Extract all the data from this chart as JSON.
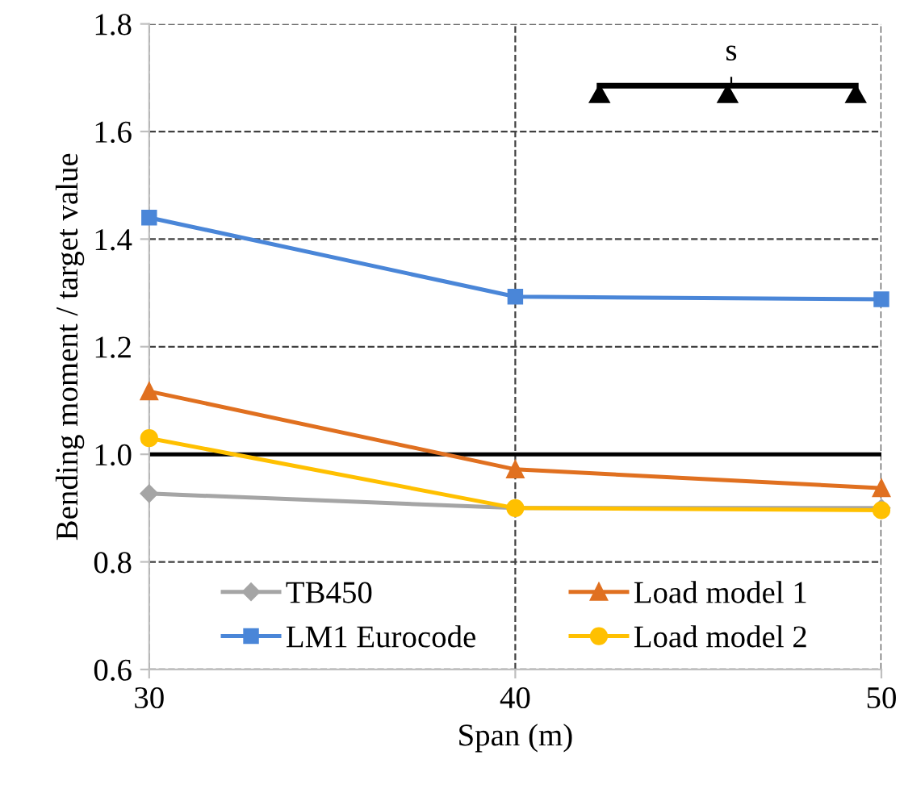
{
  "chart_data": {
    "type": "line",
    "xlabel": "Span (m)",
    "ylabel": "Bending moment / target value",
    "x": [
      30,
      40,
      50
    ],
    "series": [
      {
        "name": "TB450",
        "color": "#a5a5a5",
        "marker": "diamond",
        "values": [
          0.927,
          0.9,
          0.9
        ]
      },
      {
        "name": "Load model 1",
        "color": "#e07020",
        "marker": "triangle",
        "values": [
          1.117,
          0.972,
          0.937
        ]
      },
      {
        "name": "LM1 Eurocode",
        "color": "#4a86d8",
        "marker": "square",
        "values": [
          1.44,
          1.293,
          1.288
        ]
      },
      {
        "name": "Load model 2",
        "color": "#ffc000",
        "marker": "circle",
        "values": [
          1.03,
          0.9,
          0.896
        ]
      }
    ],
    "xlim": [
      30,
      50
    ],
    "xticks": [
      30,
      40,
      50
    ],
    "ylim": [
      0.6,
      1.8
    ],
    "yticks": [
      0.6,
      0.8,
      {
        "value": 1.0,
        "label": "1.0"
      },
      1.2,
      1.4,
      1.6,
      1.8
    ],
    "ref_lines": [
      {
        "axis": "y",
        "value": 1.0,
        "color": "#000000",
        "line_style": "solid"
      }
    ],
    "annotations": [
      "s"
    ],
    "grid": true,
    "legend": "bottom",
    "line_style": "solid"
  }
}
